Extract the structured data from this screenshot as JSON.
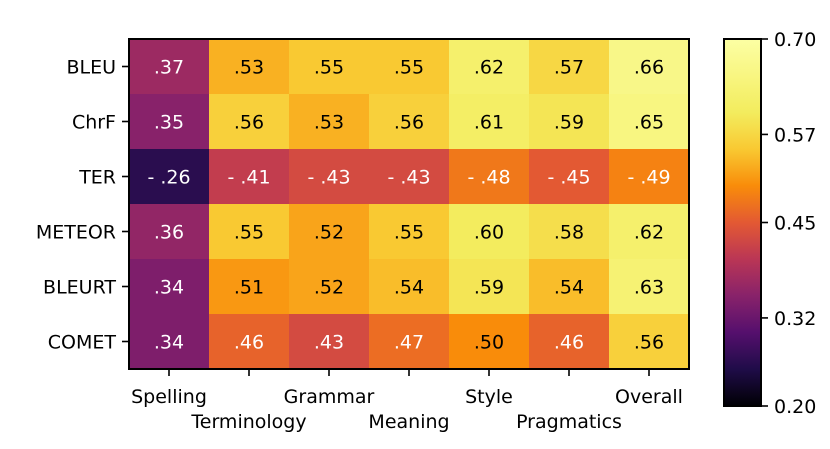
{
  "chart_data": {
    "type": "heatmap",
    "title": "",
    "xlabel": "",
    "ylabel": "",
    "rows": [
      "BLEU",
      "ChrF",
      "TER",
      "METEOR",
      "BLEURT",
      "COMET"
    ],
    "columns": [
      "Spelling",
      "Terminology",
      "Grammar",
      "Meaning",
      "Style",
      "Pragmatics",
      "Overall"
    ],
    "values": [
      [
        0.37,
        0.53,
        0.55,
        0.55,
        0.62,
        0.57,
        0.66
      ],
      [
        0.35,
        0.56,
        0.53,
        0.56,
        0.61,
        0.59,
        0.65
      ],
      [
        0.26,
        0.41,
        0.43,
        0.43,
        0.48,
        0.45,
        0.49
      ],
      [
        0.36,
        0.55,
        0.52,
        0.55,
        0.6,
        0.58,
        0.62
      ],
      [
        0.34,
        0.51,
        0.52,
        0.54,
        0.59,
        0.54,
        0.63
      ],
      [
        0.34,
        0.46,
        0.43,
        0.47,
        0.5,
        0.46,
        0.56
      ]
    ],
    "cell_labels": [
      [
        ".37",
        ".53",
        ".55",
        ".55",
        ".62",
        ".57",
        ".66"
      ],
      [
        ".35",
        ".56",
        ".53",
        ".56",
        ".61",
        ".59",
        ".65"
      ],
      [
        "- .26",
        "- .41",
        "- .43",
        "- .43",
        "- .48",
        "- .45",
        "- .49"
      ],
      [
        ".36",
        ".55",
        ".52",
        ".55",
        ".60",
        ".58",
        ".62"
      ],
      [
        ".34",
        ".51",
        ".52",
        ".54",
        ".59",
        ".54",
        ".63"
      ],
      [
        ".34",
        ".46",
        ".43",
        ".47",
        ".50",
        ".46",
        ".56"
      ]
    ],
    "colormap": "inferno",
    "colorbar": {
      "range": [
        0.2,
        0.7
      ],
      "ticks": [
        0.2,
        0.32,
        0.45,
        0.57,
        0.7
      ],
      "tick_labels": [
        "0.20",
        "0.32",
        "0.45",
        "0.57",
        "0.70"
      ]
    },
    "label_colors": {
      "light": "#ffffff",
      "dark": "#000000"
    },
    "light_label_threshold": 0.5
  }
}
